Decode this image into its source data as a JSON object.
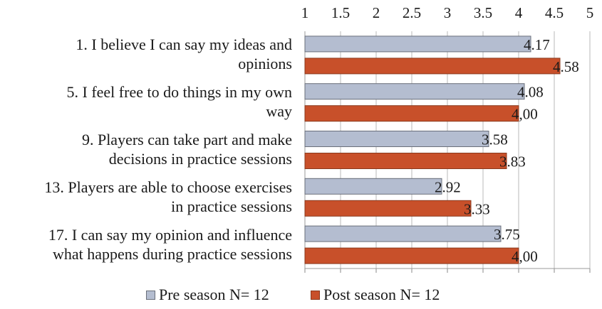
{
  "chart_data": {
    "type": "bar",
    "orientation": "horizontal",
    "xlim": [
      1,
      5
    ],
    "x_ticks": [
      "1",
      "1.5",
      "2",
      "2.5",
      "3",
      "3.5",
      "4",
      "4.5",
      "5"
    ],
    "grid": true,
    "legend_position": "bottom",
    "categories": [
      [
        "1. I believe I can say my ideas and",
        "opinions"
      ],
      [
        "5. I feel free to do things in my own",
        "way"
      ],
      [
        "9. Players can take part and make",
        "decisions in practice sessions"
      ],
      [
        "13. Players are able to choose exercises",
        "in practice sessions"
      ],
      [
        "17. I can say my opinion and influence",
        "what happens during practice sessions"
      ]
    ],
    "series": [
      {
        "name": "Pre season N= 12",
        "color": "#b4bdd0",
        "stroke": "#6a6f7a",
        "values": [
          4.17,
          4.08,
          3.58,
          2.92,
          3.75
        ],
        "labels": [
          "4.17",
          "4.08",
          "3.58",
          "2.92",
          "3.75"
        ]
      },
      {
        "name": "Post season N= 12",
        "color": "#c8502a",
        "stroke": "#8a3a1e",
        "values": [
          4.58,
          4.0,
          3.83,
          3.33,
          4.0
        ],
        "labels": [
          "4.58",
          "4,00",
          "3.83",
          "3.33",
          "4,00"
        ]
      }
    ]
  }
}
